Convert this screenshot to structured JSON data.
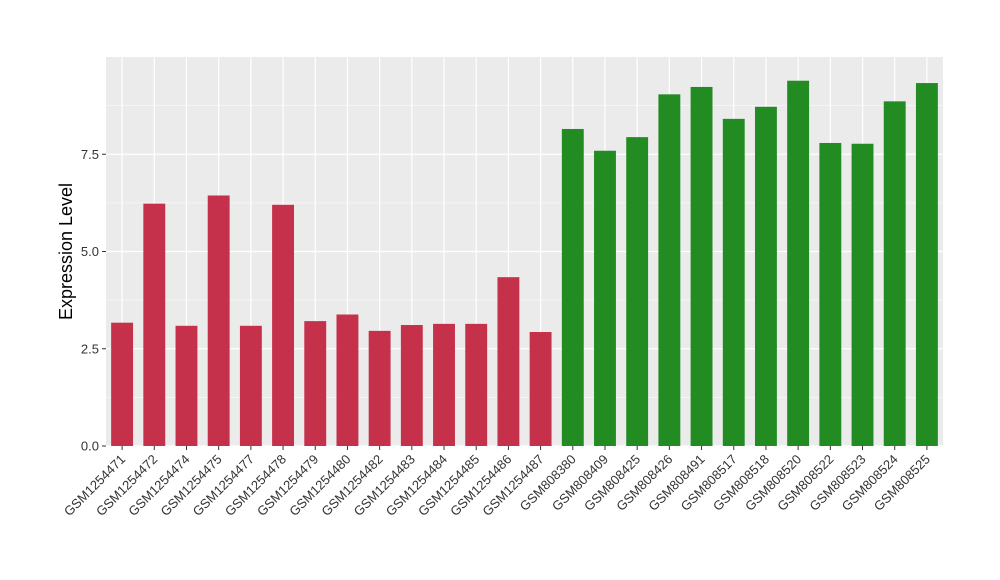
{
  "chart_data": {
    "type": "bar",
    "title": "",
    "xlabel": "",
    "ylabel": "Expression Level",
    "ylim": [
      0,
      10
    ],
    "yticks": [
      "0.0",
      "2.5",
      "5.0",
      "7.5"
    ],
    "grid": true,
    "legend": "none",
    "colors": {
      "group_a": "#c5304a",
      "group_b": "#228b22",
      "panel": "#ebebeb",
      "grid": "#ffffff"
    },
    "categories": [
      "GSM1254471",
      "GSM1254472",
      "GSM1254474",
      "GSM1254475",
      "GSM1254477",
      "GSM1254478",
      "GSM1254479",
      "GSM1254480",
      "GSM1254482",
      "GSM1254483",
      "GSM1254484",
      "GSM1254485",
      "GSM1254486",
      "GSM1254487",
      "GSM808380",
      "GSM808409",
      "GSM808425",
      "GSM808426",
      "GSM808491",
      "GSM808517",
      "GSM808518",
      "GSM808520",
      "GSM808522",
      "GSM808523",
      "GSM808524",
      "GSM808525"
    ],
    "values": [
      3.17,
      6.23,
      3.09,
      6.44,
      3.09,
      6.2,
      3.21,
      3.38,
      2.96,
      3.11,
      3.14,
      3.14,
      4.34,
      2.93,
      8.15,
      7.59,
      7.94,
      9.04,
      9.23,
      8.41,
      8.72,
      9.39,
      7.79,
      7.77,
      8.86,
      9.33
    ],
    "bar_groups": [
      "a",
      "a",
      "a",
      "a",
      "a",
      "a",
      "a",
      "a",
      "a",
      "a",
      "a",
      "a",
      "a",
      "a",
      "b",
      "b",
      "b",
      "b",
      "b",
      "b",
      "b",
      "b",
      "b",
      "b",
      "b",
      "b"
    ]
  }
}
